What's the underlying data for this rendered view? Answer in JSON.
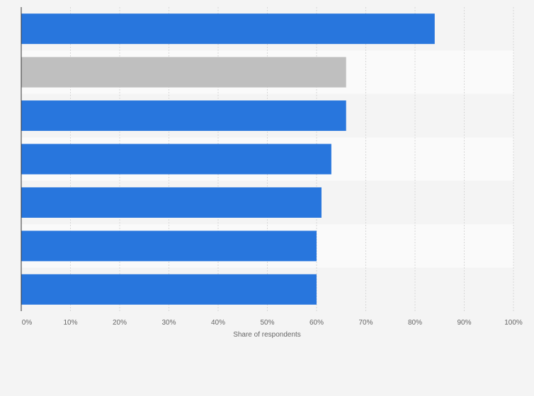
{
  "chart_data": {
    "type": "bar",
    "orientation": "horizontal",
    "categories": [
      "",
      "",
      "",
      "",
      "",
      "",
      ""
    ],
    "values": [
      84,
      66,
      66,
      63,
      61,
      60,
      60
    ],
    "highlight_index": 1,
    "xlabel": "Share of respondents",
    "xlim": [
      0,
      100
    ],
    "x_ticks": [
      0,
      10,
      20,
      30,
      40,
      50,
      60,
      70,
      80,
      90,
      100
    ],
    "x_tick_labels": [
      "0%",
      "10%",
      "20%",
      "30%",
      "40%",
      "50%",
      "60%",
      "70%",
      "80%",
      "90%",
      "100%"
    ],
    "grid": true
  },
  "colors": {
    "bar": "#2876dd",
    "bar_highlight": "#bfbfbf",
    "band_a": "#f4f4f4",
    "band_b": "#fafafa",
    "grid": "#d8d8d8",
    "axis": "#333333"
  }
}
